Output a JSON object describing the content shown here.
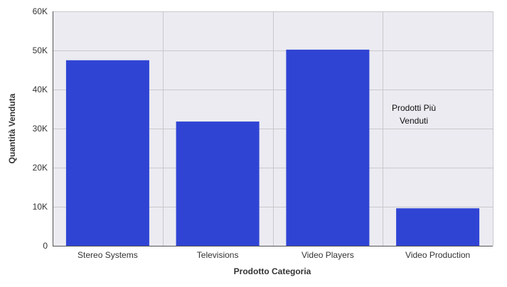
{
  "chart_data": {
    "type": "bar",
    "title": "",
    "xlabel": "Prodotto Categoria",
    "ylabel": "Quantità Venduta",
    "categories": [
      "Stereo Systems",
      "Televisions",
      "Video Players",
      "Video Production"
    ],
    "values": [
      47500,
      31800,
      50200,
      9600
    ],
    "ylim": [
      0,
      60000
    ],
    "yticks": [
      0,
      10000,
      20000,
      30000,
      40000,
      50000,
      60000
    ],
    "ytick_labels": [
      "0",
      "10K",
      "20K",
      "30K",
      "40K",
      "50K",
      "60K"
    ],
    "grid": true,
    "legend": "none",
    "annotation": {
      "lines": [
        "Prodotti Più",
        "Venduti"
      ]
    },
    "colors": {
      "bar": "#3044d4",
      "plot_bg": "#ebebf1",
      "grid": "#c8c8cc",
      "axis": "#555555"
    }
  }
}
